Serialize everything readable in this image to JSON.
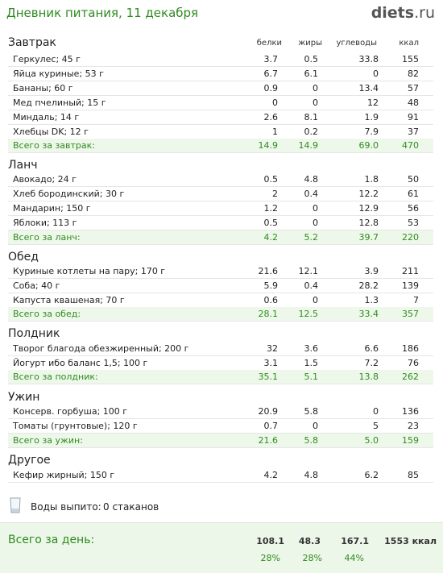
{
  "header": {
    "title": "Дневник питания, 11 декабря",
    "logo_main": "diets",
    "logo_tld": "ru"
  },
  "columns": {
    "protein": "белки",
    "fat": "жиры",
    "carbs": "углеводы",
    "kcal": "ккал"
  },
  "sections": [
    {
      "title": "Завтрак",
      "items": [
        {
          "name": "Геркулес; 45 г",
          "protein": "3.7",
          "fat": "0.5",
          "carbs": "33.8",
          "kcal": "155"
        },
        {
          "name": "Яйца куриные; 53 г",
          "protein": "6.7",
          "fat": "6.1",
          "carbs": "0",
          "kcal": "82"
        },
        {
          "name": "Бананы; 60 г",
          "protein": "0.9",
          "fat": "0",
          "carbs": "13.4",
          "kcal": "57"
        },
        {
          "name": "Мед пчелиный; 15 г",
          "protein": "0",
          "fat": "0",
          "carbs": "12",
          "kcal": "48"
        },
        {
          "name": "Миндаль; 14 г",
          "protein": "2.6",
          "fat": "8.1",
          "carbs": "1.9",
          "kcal": "91"
        },
        {
          "name": "Хлебцы DK; 12 г",
          "protein": "1",
          "fat": "0.2",
          "carbs": "7.9",
          "kcal": "37"
        }
      ],
      "total": {
        "label": "Всего за завтрак:",
        "protein": "14.9",
        "fat": "14.9",
        "carbs": "69.0",
        "kcal": "470"
      }
    },
    {
      "title": "Ланч",
      "items": [
        {
          "name": "Авокадо; 24 г",
          "protein": "0.5",
          "fat": "4.8",
          "carbs": "1.8",
          "kcal": "50"
        },
        {
          "name": "Хлеб бородинский; 30 г",
          "protein": "2",
          "fat": "0.4",
          "carbs": "12.2",
          "kcal": "61"
        },
        {
          "name": "Мандарин; 150 г",
          "protein": "1.2",
          "fat": "0",
          "carbs": "12.9",
          "kcal": "56"
        },
        {
          "name": "Яблоки; 113 г",
          "protein": "0.5",
          "fat": "0",
          "carbs": "12.8",
          "kcal": "53"
        }
      ],
      "total": {
        "label": "Всего за ланч:",
        "protein": "4.2",
        "fat": "5.2",
        "carbs": "39.7",
        "kcal": "220"
      }
    },
    {
      "title": "Обед",
      "items": [
        {
          "name": "Куриные котлеты на пару; 170 г",
          "protein": "21.6",
          "fat": "12.1",
          "carbs": "3.9",
          "kcal": "211"
        },
        {
          "name": "Соба; 40 г",
          "protein": "5.9",
          "fat": "0.4",
          "carbs": "28.2",
          "kcal": "139"
        },
        {
          "name": "Капуста квашеная; 70 г",
          "protein": "0.6",
          "fat": "0",
          "carbs": "1.3",
          "kcal": "7"
        }
      ],
      "total": {
        "label": "Всего за обед:",
        "protein": "28.1",
        "fat": "12.5",
        "carbs": "33.4",
        "kcal": "357"
      }
    },
    {
      "title": "Полдник",
      "items": [
        {
          "name": "Творог благода обезжиренный; 200 г",
          "protein": "32",
          "fat": "3.6",
          "carbs": "6.6",
          "kcal": "186"
        },
        {
          "name": "Йогурт ибо баланс 1,5; 100 г",
          "protein": "3.1",
          "fat": "1.5",
          "carbs": "7.2",
          "kcal": "76"
        }
      ],
      "total": {
        "label": "Всего за полдник:",
        "protein": "35.1",
        "fat": "5.1",
        "carbs": "13.8",
        "kcal": "262"
      }
    },
    {
      "title": "Ужин",
      "items": [
        {
          "name": "Консерв. горбуша; 100 г",
          "protein": "20.9",
          "fat": "5.8",
          "carbs": "0",
          "kcal": "136"
        },
        {
          "name": "Томаты (грунтовые); 120 г",
          "protein": "0.7",
          "fat": "0",
          "carbs": "5",
          "kcal": "23"
        }
      ],
      "total": {
        "label": "Всего за ужин:",
        "protein": "21.6",
        "fat": "5.8",
        "carbs": "5.0",
        "kcal": "159"
      }
    },
    {
      "title": "Другое",
      "items": [
        {
          "name": "Кефир жирный; 150 г",
          "protein": "4.2",
          "fat": "4.8",
          "carbs": "6.2",
          "kcal": "85"
        }
      ]
    }
  ],
  "water": {
    "label": "Воды выпито:",
    "value": "0 стаканов",
    "icon": "glass-icon"
  },
  "day_total": {
    "label": "Всего за день:",
    "protein": "108.1",
    "fat": "48.3",
    "carbs": "167.1",
    "kcal": "1553 ккал",
    "protein_pct": "28%",
    "fat_pct": "28%",
    "carbs_pct": "44%"
  },
  "colors": {
    "accent": "#2e8b1f",
    "total_bg": "#eef8ea"
  }
}
